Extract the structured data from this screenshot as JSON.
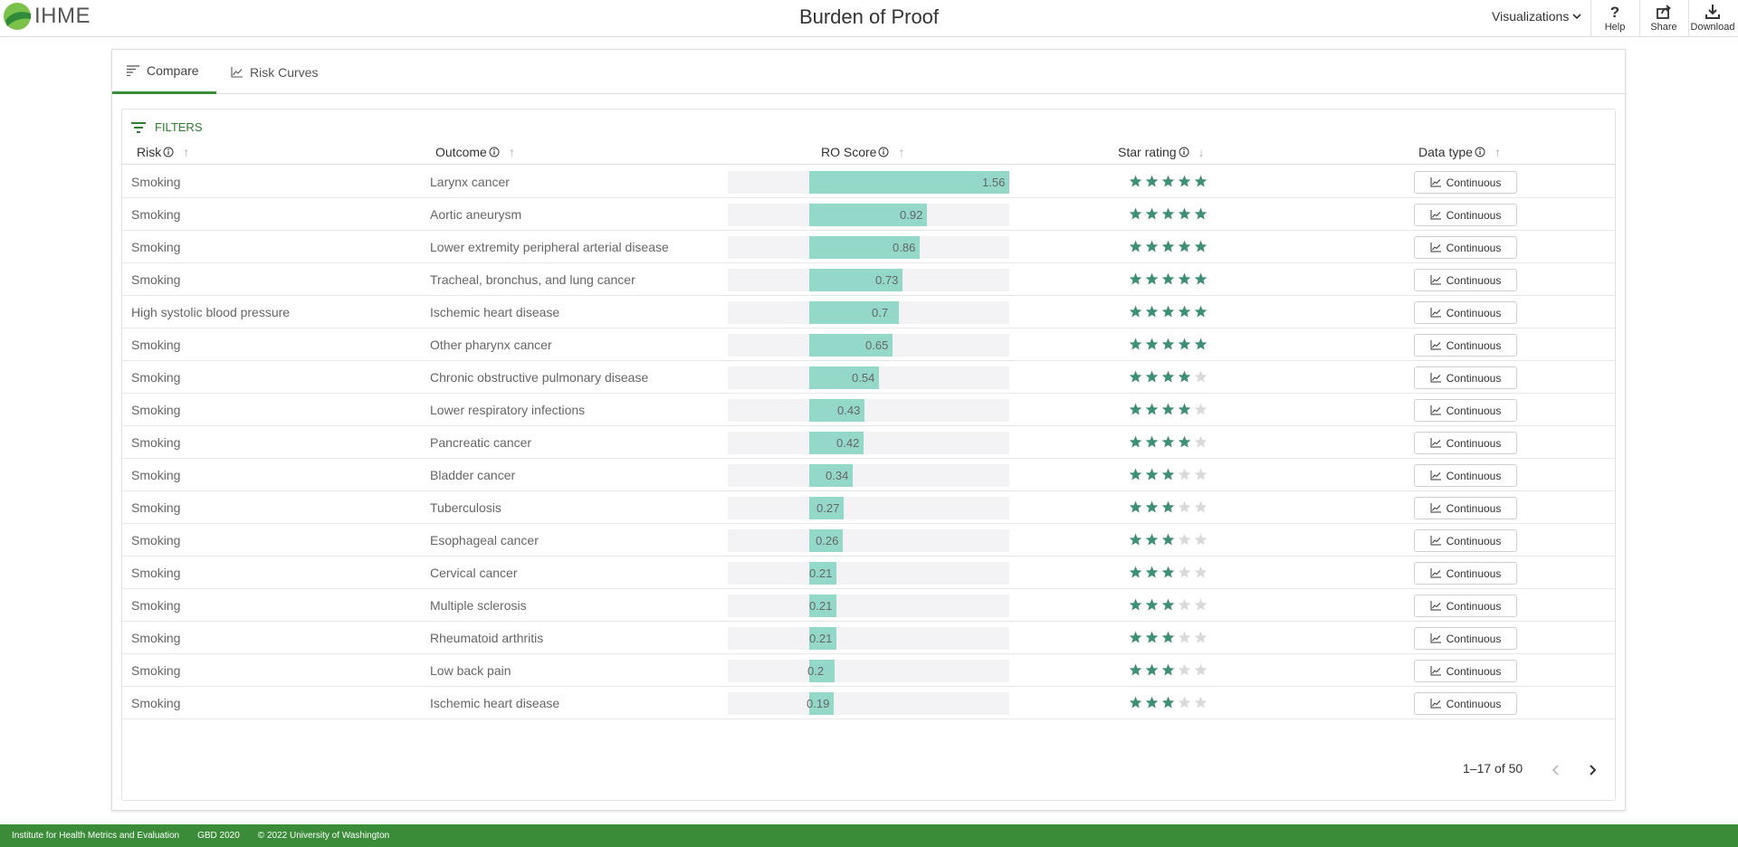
{
  "header": {
    "logo_text": "IHME",
    "title": "Burden of Proof",
    "visualizations_label": "Visualizations",
    "help_label": "Help",
    "share_label": "Share",
    "download_label": "Download"
  },
  "tabs": [
    {
      "label": "Compare",
      "icon": "sort-lines-icon",
      "active": true
    },
    {
      "label": "Risk Curves",
      "icon": "line-chart-icon",
      "active": false
    }
  ],
  "filters_label": "FILTERS",
  "columns": {
    "risk": "Risk",
    "outcome": "Outcome",
    "ro_score": "RO Score",
    "star_rating": "Star rating",
    "data_type": "Data type"
  },
  "rows": [
    {
      "risk": "Smoking",
      "outcome": "Larynx cancer",
      "score": "1.56",
      "stars": 5,
      "data_type": "Continuous"
    },
    {
      "risk": "Smoking",
      "outcome": "Aortic aneurysm",
      "score": "0.92",
      "stars": 5,
      "data_type": "Continuous"
    },
    {
      "risk": "Smoking",
      "outcome": "Lower extremity peripheral arterial disease",
      "score": "0.86",
      "stars": 5,
      "data_type": "Continuous"
    },
    {
      "risk": "Smoking",
      "outcome": "Tracheal, bronchus, and lung cancer",
      "score": "0.73",
      "stars": 5,
      "data_type": "Continuous"
    },
    {
      "risk": "High systolic blood pressure",
      "outcome": "Ischemic heart disease",
      "score": "0.7",
      "stars": 5,
      "data_type": "Continuous"
    },
    {
      "risk": "Smoking",
      "outcome": "Other pharynx cancer",
      "score": "0.65",
      "stars": 5,
      "data_type": "Continuous"
    },
    {
      "risk": "Smoking",
      "outcome": "Chronic obstructive pulmonary disease",
      "score": "0.54",
      "stars": 4,
      "data_type": "Continuous"
    },
    {
      "risk": "Smoking",
      "outcome": "Lower respiratory infections",
      "score": "0.43",
      "stars": 4,
      "data_type": "Continuous"
    },
    {
      "risk": "Smoking",
      "outcome": "Pancreatic cancer",
      "score": "0.42",
      "stars": 4,
      "data_type": "Continuous"
    },
    {
      "risk": "Smoking",
      "outcome": "Bladder cancer",
      "score": "0.34",
      "stars": 3,
      "data_type": "Continuous"
    },
    {
      "risk": "Smoking",
      "outcome": "Tuberculosis",
      "score": "0.27",
      "stars": 3,
      "data_type": "Continuous"
    },
    {
      "risk": "Smoking",
      "outcome": "Esophageal cancer",
      "score": "0.26",
      "stars": 3,
      "data_type": "Continuous"
    },
    {
      "risk": "Smoking",
      "outcome": "Cervical cancer",
      "score": "0.21",
      "stars": 3,
      "data_type": "Continuous"
    },
    {
      "risk": "Smoking",
      "outcome": "Multiple sclerosis",
      "score": "0.21",
      "stars": 3,
      "data_type": "Continuous"
    },
    {
      "risk": "Smoking",
      "outcome": "Rheumatoid arthritis",
      "score": "0.21",
      "stars": 3,
      "data_type": "Continuous"
    },
    {
      "risk": "Smoking",
      "outcome": "Low back pain",
      "score": "0.2",
      "stars": 3,
      "data_type": "Continuous"
    },
    {
      "risk": "Smoking",
      "outcome": "Ischemic heart disease",
      "score": "0.19",
      "stars": 3,
      "data_type": "Continuous"
    }
  ],
  "pagination": {
    "label": "1–17 of 50"
  },
  "footer": {
    "org": "Institute for Health Metrics and Evaluation",
    "gbd": "GBD 2020",
    "copyright": "© 2022 University of Washington"
  },
  "colors": {
    "accent": "#3b8c39",
    "bar": "#93d8c8",
    "star_on": "#3f8f78",
    "star_off": "#d9d9d9"
  }
}
